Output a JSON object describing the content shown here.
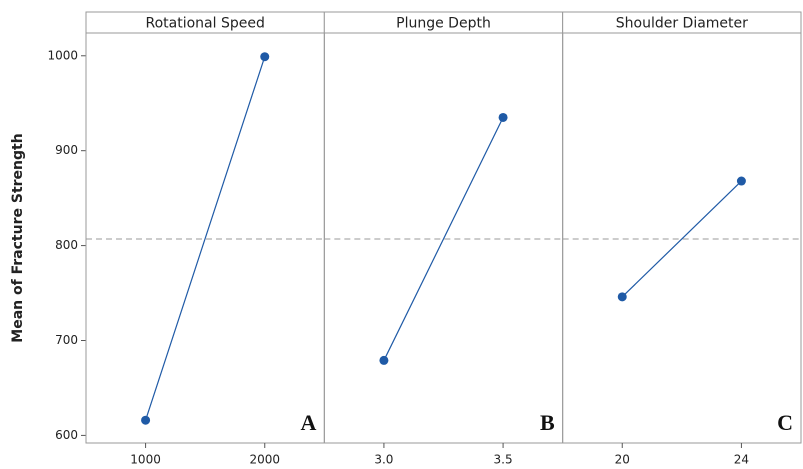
{
  "chart_data": {
    "type": "line",
    "ylabel": "Mean of Fracture Strength",
    "ylim": [
      592,
      1024
    ],
    "yticks": [
      600,
      700,
      800,
      900,
      1000
    ],
    "reference_line": 807,
    "color": "#1f5aa6",
    "panels": [
      {
        "title": "Rotational Speed",
        "categories": [
          "1000",
          "2000"
        ],
        "values": [
          616,
          999
        ],
        "label": "A"
      },
      {
        "title": "Plunge Depth",
        "categories": [
          "3.0",
          "3.5"
        ],
        "values": [
          679,
          935
        ],
        "label": "B"
      },
      {
        "title": "Shoulder Diameter",
        "categories": [
          "20",
          "24"
        ],
        "values": [
          746,
          868
        ],
        "label": "C"
      }
    ]
  }
}
